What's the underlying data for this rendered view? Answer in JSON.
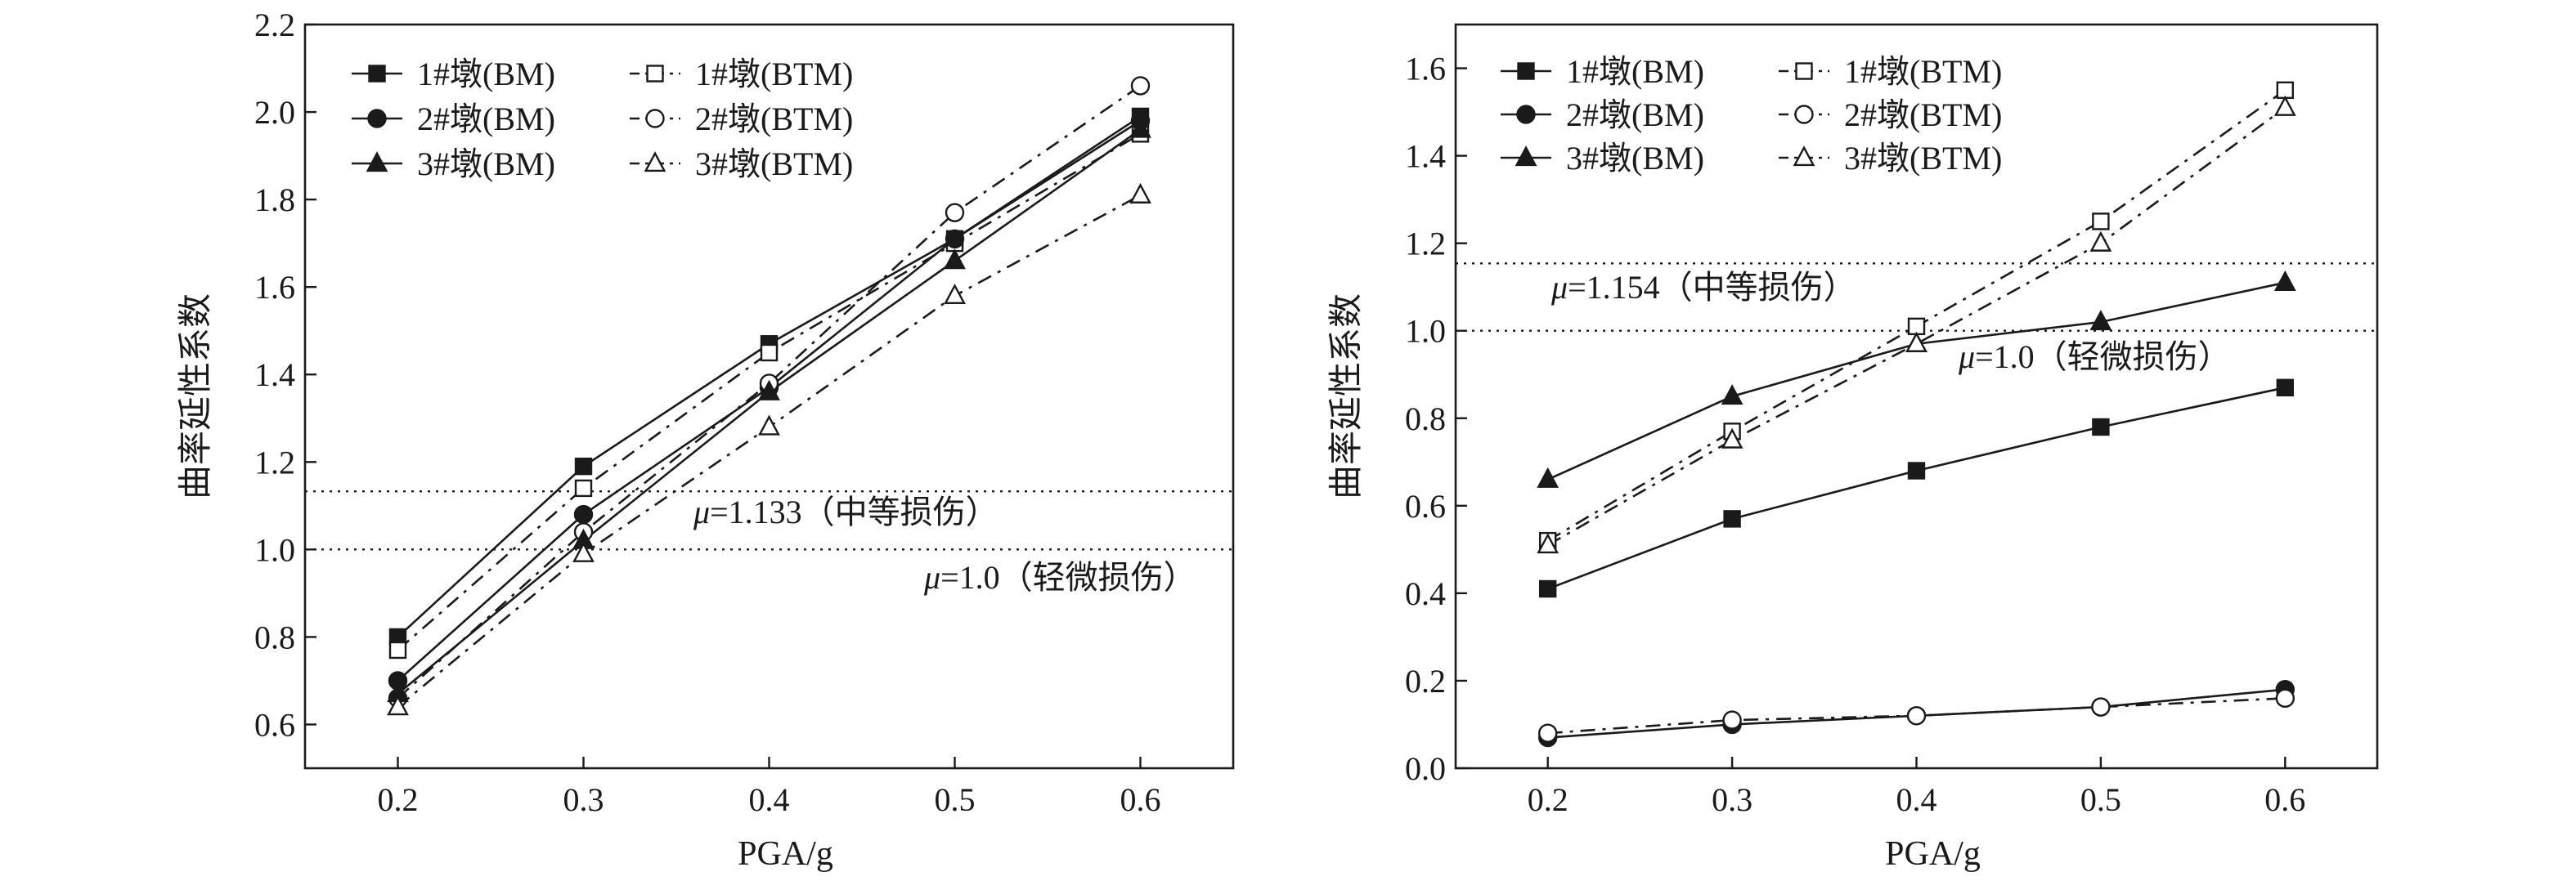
{
  "chart_data": [
    {
      "type": "line",
      "panel": "left",
      "xlabel": "PGA/g",
      "ylabel": "曲率延性系数",
      "xlim": [
        0.15,
        0.65
      ],
      "ylim": [
        0.5,
        2.2
      ],
      "xticks": [
        0.2,
        0.3,
        0.4,
        0.5,
        0.6
      ],
      "xtick_labels": [
        "0.2",
        "0.3",
        "0.4",
        "0.5",
        "0.6"
      ],
      "yticks": [
        0.6,
        0.8,
        1.0,
        1.2,
        1.4,
        1.6,
        1.8,
        2.0,
        2.2
      ],
      "ytick_labels": [
        "0.6",
        "0.8",
        "1.0",
        "1.2",
        "1.4",
        "1.6",
        "1.8",
        "2.0",
        "2.2"
      ],
      "x": [
        0.2,
        0.3,
        0.4,
        0.5,
        0.6
      ],
      "series": [
        {
          "name": "1#墩(BM)",
          "marker": "square",
          "filled": true,
          "dash": "solid",
          "values": [
            0.8,
            1.19,
            1.47,
            1.71,
            1.99
          ]
        },
        {
          "name": "1#墩(BTM)",
          "marker": "square",
          "filled": false,
          "dash": "dashdot",
          "values": [
            0.77,
            1.14,
            1.45,
            1.7,
            1.95
          ]
        },
        {
          "name": "2#墩(BM)",
          "marker": "circle",
          "filled": true,
          "dash": "solid",
          "values": [
            0.7,
            1.08,
            1.37,
            1.71,
            1.98
          ]
        },
        {
          "name": "2#墩(BTM)",
          "marker": "circle",
          "filled": false,
          "dash": "dashdot",
          "values": [
            0.66,
            1.04,
            1.38,
            1.77,
            2.06
          ]
        },
        {
          "name": "3#墩(BM)",
          "marker": "triangle",
          "filled": true,
          "dash": "solid",
          "values": [
            0.67,
            1.02,
            1.36,
            1.66,
            1.96
          ]
        },
        {
          "name": "3#墩(BTM)",
          "marker": "triangle",
          "filled": false,
          "dash": "dashdot",
          "values": [
            0.64,
            0.99,
            1.28,
            1.58,
            1.81
          ]
        }
      ],
      "reference_lines": [
        {
          "value": 1.133,
          "mu": "μ",
          "label": "=1.133（中等损伤）"
        },
        {
          "value": 1.0,
          "mu": "μ",
          "label": "=1.0（轻微损伤）"
        }
      ],
      "legend": "top-left"
    },
    {
      "type": "line",
      "panel": "right",
      "xlabel": "PGA/g",
      "ylabel": "曲率延性系数",
      "xlim": [
        0.15,
        0.65
      ],
      "ylim": [
        0.0,
        1.7
      ],
      "xticks": [
        0.2,
        0.3,
        0.4,
        0.5,
        0.6
      ],
      "xtick_labels": [
        "0.2",
        "0.3",
        "0.4",
        "0.5",
        "0.6"
      ],
      "yticks": [
        0.0,
        0.2,
        0.4,
        0.6,
        0.8,
        1.0,
        1.2,
        1.4,
        1.6
      ],
      "ytick_labels": [
        "0.0",
        "0.2",
        "0.4",
        "0.6",
        "0.8",
        "1.0",
        "1.2",
        "1.4",
        "1.6"
      ],
      "x": [
        0.2,
        0.3,
        0.4,
        0.5,
        0.6
      ],
      "series": [
        {
          "name": "1#墩(BM)",
          "marker": "square",
          "filled": true,
          "dash": "solid",
          "values": [
            0.41,
            0.57,
            0.68,
            0.78,
            0.87
          ]
        },
        {
          "name": "1#墩(BTM)",
          "marker": "square",
          "filled": false,
          "dash": "dashdot",
          "values": [
            0.52,
            0.77,
            1.01,
            1.25,
            1.55
          ]
        },
        {
          "name": "2#墩(BM)",
          "marker": "circle",
          "filled": true,
          "dash": "solid",
          "values": [
            0.07,
            0.1,
            0.12,
            0.14,
            0.18
          ]
        },
        {
          "name": "2#墩(BTM)",
          "marker": "circle",
          "filled": false,
          "dash": "dashdot",
          "values": [
            0.08,
            0.11,
            0.12,
            0.14,
            0.16
          ]
        },
        {
          "name": "3#墩(BM)",
          "marker": "triangle",
          "filled": true,
          "dash": "solid",
          "values": [
            0.66,
            0.85,
            0.97,
            1.02,
            1.11
          ]
        },
        {
          "name": "3#墩(BTM)",
          "marker": "triangle",
          "filled": false,
          "dash": "dashdot",
          "values": [
            0.51,
            0.75,
            0.97,
            1.2,
            1.51
          ]
        }
      ],
      "reference_lines": [
        {
          "value": 1.154,
          "mu": "μ",
          "label": "=1.154（中等损伤）"
        },
        {
          "value": 1.0,
          "mu": "μ",
          "label": "=1.0（轻微损伤）"
        }
      ],
      "legend": "top-left"
    }
  ]
}
